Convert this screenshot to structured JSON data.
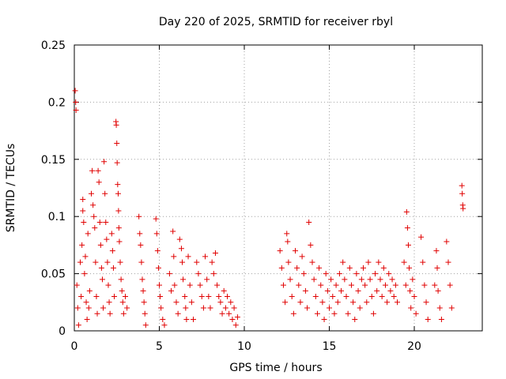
{
  "chart_data": {
    "type": "scatter",
    "title": "Day 220 of 2025, SRMTID for receiver rbyl",
    "xlabel": "GPS time / hours",
    "ylabel": "SRMTID / TECUs",
    "xlim": [
      0,
      24
    ],
    "ylim": [
      0,
      0.25
    ],
    "x_ticks": [
      0,
      5,
      10,
      15,
      20
    ],
    "x_tick_labels": [
      "0",
      "5",
      "10",
      "15",
      "20"
    ],
    "y_ticks": [
      0,
      0.05,
      0.1,
      0.15,
      0.2,
      0.25
    ],
    "y_tick_labels": [
      "0",
      "0.05",
      "0.1",
      "0.15",
      "0.2",
      "0.25"
    ],
    "grid": true,
    "marker": "+",
    "color": "#e00000",
    "series": [
      {
        "name": "SRMTID",
        "points": [
          [
            0.05,
            0.21
          ],
          [
            0.08,
            0.2
          ],
          [
            0.1,
            0.193
          ],
          [
            0.15,
            0.04
          ],
          [
            0.2,
            0.02
          ],
          [
            0.25,
            0.005
          ],
          [
            0.35,
            0.06
          ],
          [
            0.4,
            0.03
          ],
          [
            0.45,
            0.075
          ],
          [
            0.5,
            0.115
          ],
          [
            0.5,
            0.105
          ],
          [
            0.55,
            0.095
          ],
          [
            0.6,
            0.05
          ],
          [
            0.65,
            0.065
          ],
          [
            0.7,
            0.025
          ],
          [
            0.75,
            0.01
          ],
          [
            0.8,
            0.085
          ],
          [
            0.85,
            0.02
          ],
          [
            0.9,
            0.035
          ],
          [
            1.0,
            0.12
          ],
          [
            1.05,
            0.14
          ],
          [
            1.1,
            0.11
          ],
          [
            1.15,
            0.1
          ],
          [
            1.2,
            0.09
          ],
          [
            1.25,
            0.06
          ],
          [
            1.3,
            0.03
          ],
          [
            1.35,
            0.015
          ],
          [
            1.4,
            0.14
          ],
          [
            1.45,
            0.13
          ],
          [
            1.5,
            0.095
          ],
          [
            1.55,
            0.075
          ],
          [
            1.6,
            0.055
          ],
          [
            1.65,
            0.045
          ],
          [
            1.7,
            0.02
          ],
          [
            1.75,
            0.148
          ],
          [
            1.8,
            0.12
          ],
          [
            1.85,
            0.095
          ],
          [
            1.9,
            0.08
          ],
          [
            1.95,
            0.06
          ],
          [
            2.0,
            0.04
          ],
          [
            2.05,
            0.025
          ],
          [
            2.1,
            0.015
          ],
          [
            2.2,
            0.085
          ],
          [
            2.25,
            0.07
          ],
          [
            2.3,
            0.055
          ],
          [
            2.35,
            0.03
          ],
          [
            2.45,
            0.183
          ],
          [
            2.47,
            0.18
          ],
          [
            2.5,
            0.164
          ],
          [
            2.52,
            0.147
          ],
          [
            2.55,
            0.128
          ],
          [
            2.58,
            0.12
          ],
          [
            2.6,
            0.105
          ],
          [
            2.62,
            0.09
          ],
          [
            2.65,
            0.078
          ],
          [
            2.7,
            0.06
          ],
          [
            2.75,
            0.045
          ],
          [
            2.8,
            0.035
          ],
          [
            2.85,
            0.025
          ],
          [
            2.9,
            0.015
          ],
          [
            3.0,
            0.03
          ],
          [
            3.1,
            0.02
          ],
          [
            3.8,
            0.1
          ],
          [
            3.85,
            0.085
          ],
          [
            3.9,
            0.075
          ],
          [
            3.95,
            0.06
          ],
          [
            4.0,
            0.045
          ],
          [
            4.05,
            0.035
          ],
          [
            4.1,
            0.025
          ],
          [
            4.15,
            0.015
          ],
          [
            4.2,
            0.005
          ],
          [
            4.8,
            0.098
          ],
          [
            4.85,
            0.085
          ],
          [
            4.9,
            0.07
          ],
          [
            4.95,
            0.055
          ],
          [
            5.0,
            0.04
          ],
          [
            5.05,
            0.03
          ],
          [
            5.1,
            0.02
          ],
          [
            5.2,
            0.01
          ],
          [
            5.3,
            0.005
          ],
          [
            5.6,
            0.05
          ],
          [
            5.7,
            0.035
          ],
          [
            5.8,
            0.087
          ],
          [
            5.85,
            0.065
          ],
          [
            5.9,
            0.04
          ],
          [
            6.0,
            0.025
          ],
          [
            6.1,
            0.015
          ],
          [
            6.2,
            0.08
          ],
          [
            6.3,
            0.072
          ],
          [
            6.35,
            0.06
          ],
          [
            6.4,
            0.045
          ],
          [
            6.5,
            0.03
          ],
          [
            6.55,
            0.02
          ],
          [
            6.6,
            0.01
          ],
          [
            6.7,
            0.065
          ],
          [
            6.8,
            0.04
          ],
          [
            6.9,
            0.025
          ],
          [
            7.0,
            0.01
          ],
          [
            7.2,
            0.06
          ],
          [
            7.3,
            0.05
          ],
          [
            7.4,
            0.04
          ],
          [
            7.5,
            0.03
          ],
          [
            7.6,
            0.02
          ],
          [
            7.7,
            0.065
          ],
          [
            7.8,
            0.045
          ],
          [
            7.9,
            0.03
          ],
          [
            8.0,
            0.02
          ],
          [
            8.1,
            0.06
          ],
          [
            8.2,
            0.05
          ],
          [
            8.3,
            0.068
          ],
          [
            8.4,
            0.04
          ],
          [
            8.5,
            0.03
          ],
          [
            8.6,
            0.025
          ],
          [
            8.7,
            0.015
          ],
          [
            8.8,
            0.035
          ],
          [
            8.9,
            0.02
          ],
          [
            9.0,
            0.03
          ],
          [
            9.1,
            0.015
          ],
          [
            9.2,
            0.025
          ],
          [
            9.3,
            0.01
          ],
          [
            9.4,
            0.02
          ],
          [
            9.5,
            0.005
          ],
          [
            9.6,
            0.012
          ],
          [
            12.1,
            0.07
          ],
          [
            12.2,
            0.055
          ],
          [
            12.3,
            0.04
          ],
          [
            12.4,
            0.025
          ],
          [
            12.5,
            0.085
          ],
          [
            12.55,
            0.078
          ],
          [
            12.6,
            0.06
          ],
          [
            12.7,
            0.045
          ],
          [
            12.8,
            0.03
          ],
          [
            12.9,
            0.015
          ],
          [
            13.0,
            0.07
          ],
          [
            13.1,
            0.055
          ],
          [
            13.2,
            0.04
          ],
          [
            13.3,
            0.025
          ],
          [
            13.4,
            0.065
          ],
          [
            13.5,
            0.05
          ],
          [
            13.6,
            0.035
          ],
          [
            13.7,
            0.02
          ],
          [
            13.8,
            0.095
          ],
          [
            13.9,
            0.075
          ],
          [
            14.0,
            0.06
          ],
          [
            14.1,
            0.045
          ],
          [
            14.2,
            0.03
          ],
          [
            14.3,
            0.015
          ],
          [
            14.4,
            0.055
          ],
          [
            14.5,
            0.04
          ],
          [
            14.6,
            0.025
          ],
          [
            14.7,
            0.01
          ],
          [
            14.8,
            0.05
          ],
          [
            14.9,
            0.035
          ],
          [
            15.0,
            0.02
          ],
          [
            15.1,
            0.045
          ],
          [
            15.2,
            0.03
          ],
          [
            15.3,
            0.015
          ],
          [
            15.4,
            0.04
          ],
          [
            15.5,
            0.025
          ],
          [
            15.6,
            0.05
          ],
          [
            15.7,
            0.035
          ],
          [
            15.8,
            0.06
          ],
          [
            15.9,
            0.045
          ],
          [
            16.0,
            0.03
          ],
          [
            16.1,
            0.015
          ],
          [
            16.2,
            0.055
          ],
          [
            16.3,
            0.04
          ],
          [
            16.4,
            0.025
          ],
          [
            16.5,
            0.01
          ],
          [
            16.6,
            0.05
          ],
          [
            16.7,
            0.035
          ],
          [
            16.8,
            0.02
          ],
          [
            16.9,
            0.045
          ],
          [
            17.0,
            0.055
          ],
          [
            17.1,
            0.04
          ],
          [
            17.2,
            0.025
          ],
          [
            17.3,
            0.06
          ],
          [
            17.4,
            0.045
          ],
          [
            17.5,
            0.03
          ],
          [
            17.6,
            0.015
          ],
          [
            17.7,
            0.05
          ],
          [
            17.8,
            0.035
          ],
          [
            17.9,
            0.06
          ],
          [
            18.0,
            0.045
          ],
          [
            18.1,
            0.03
          ],
          [
            18.2,
            0.055
          ],
          [
            18.3,
            0.04
          ],
          [
            18.4,
            0.025
          ],
          [
            18.5,
            0.05
          ],
          [
            18.6,
            0.035
          ],
          [
            18.7,
            0.045
          ],
          [
            18.8,
            0.03
          ],
          [
            18.9,
            0.04
          ],
          [
            19.0,
            0.025
          ],
          [
            19.4,
            0.06
          ],
          [
            19.5,
            0.04
          ],
          [
            19.55,
            0.104
          ],
          [
            19.6,
            0.09
          ],
          [
            19.65,
            0.075
          ],
          [
            19.7,
            0.055
          ],
          [
            19.75,
            0.035
          ],
          [
            19.8,
            0.02
          ],
          [
            19.9,
            0.045
          ],
          [
            20.0,
            0.03
          ],
          [
            20.1,
            0.015
          ],
          [
            20.4,
            0.082
          ],
          [
            20.5,
            0.06
          ],
          [
            20.6,
            0.04
          ],
          [
            20.7,
            0.025
          ],
          [
            20.8,
            0.01
          ],
          [
            21.2,
            0.04
          ],
          [
            21.3,
            0.07
          ],
          [
            21.35,
            0.055
          ],
          [
            21.4,
            0.035
          ],
          [
            21.5,
            0.02
          ],
          [
            21.6,
            0.01
          ],
          [
            21.9,
            0.078
          ],
          [
            22.0,
            0.06
          ],
          [
            22.1,
            0.04
          ],
          [
            22.2,
            0.02
          ],
          [
            22.8,
            0.127
          ],
          [
            22.82,
            0.12
          ],
          [
            22.85,
            0.11
          ],
          [
            22.87,
            0.107
          ]
        ]
      }
    ]
  }
}
